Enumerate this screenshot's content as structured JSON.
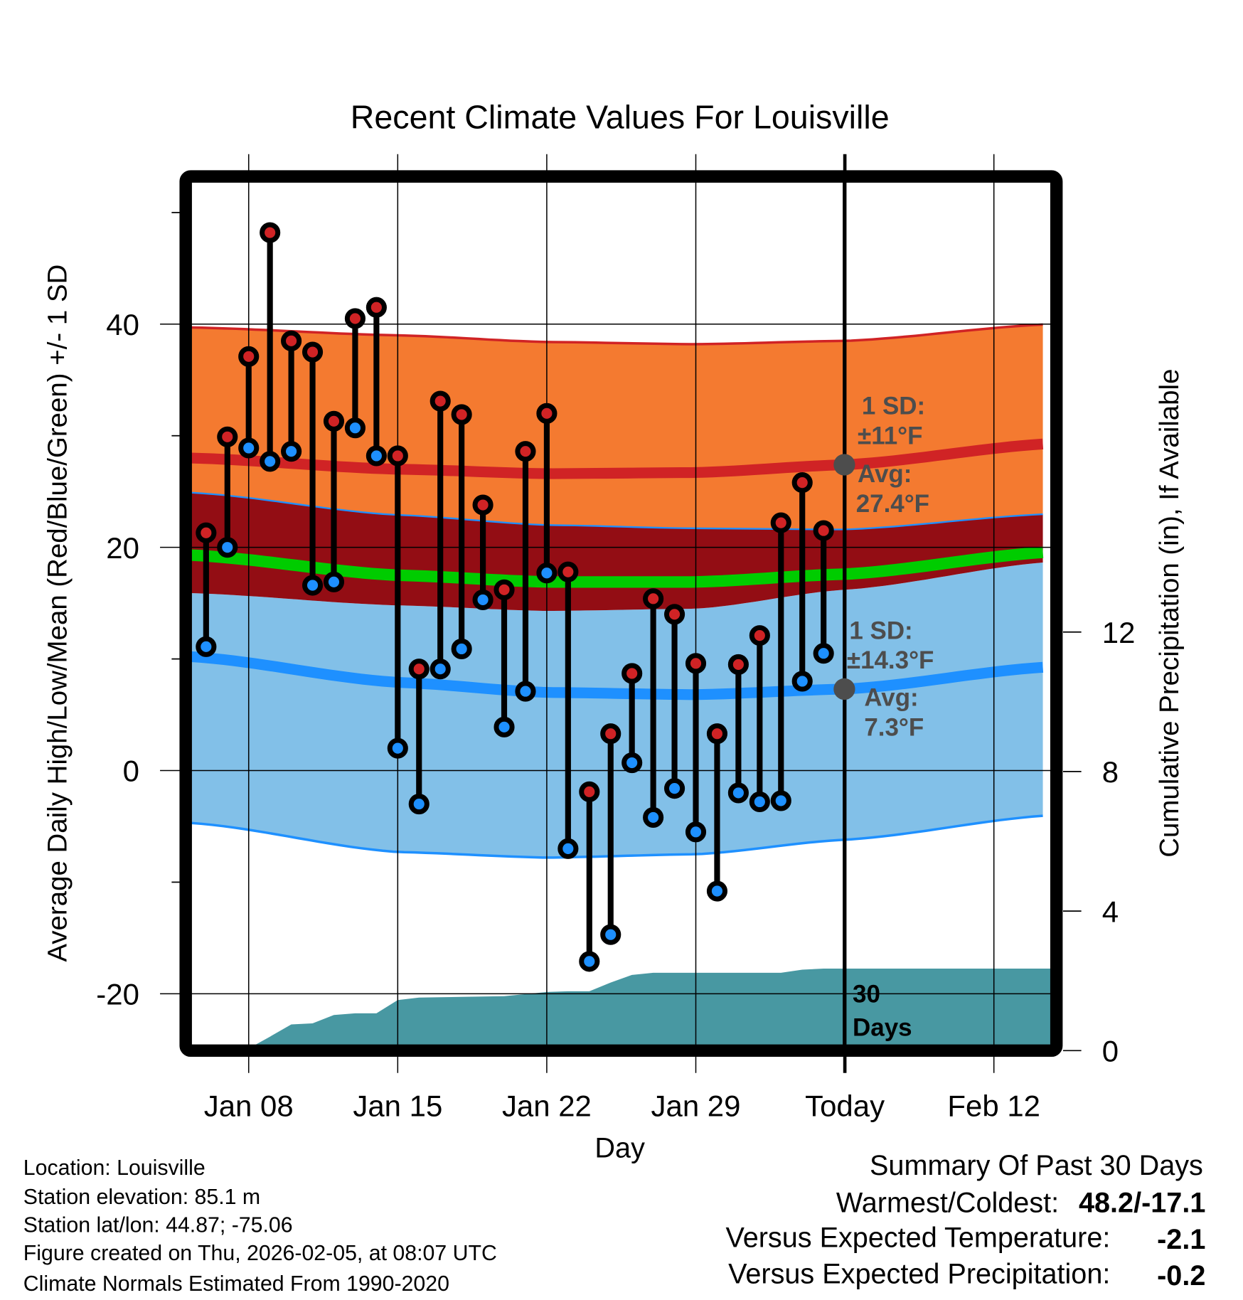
{
  "chart_data": {
    "type": "line",
    "title": "Recent Climate Values For Louisville",
    "xlabel": "Day",
    "ylabel": "Average Daily High/Low/Mean (Red/Blue/Green) +/- 1 SD",
    "y2label": "Cumulative Precipitation (in), If Available",
    "ylim": [
      -25,
      53
    ],
    "y2lim": [
      0,
      18.5
    ],
    "yticks": [
      "40",
      "20",
      "0",
      "-20"
    ],
    "yticks_values": [
      40,
      20,
      0,
      -20
    ],
    "y2ticks": [
      "12",
      "8",
      "4",
      "0"
    ],
    "y2ticks_values": [
      12,
      8,
      4,
      0
    ],
    "xticks": [
      "Jan 08",
      "Jan 15",
      "Jan 22",
      "Jan 29",
      "Today",
      "Feb 12"
    ],
    "xticks_days_from_jan08": [
      0,
      7,
      14,
      21,
      28,
      35
    ],
    "grid": true,
    "days": [
      "Jan 06",
      "Jan 07",
      "Jan 08",
      "Jan 09",
      "Jan 10",
      "Jan 11",
      "Jan 12",
      "Jan 13",
      "Jan 14",
      "Jan 15",
      "Jan 16",
      "Jan 17",
      "Jan 18",
      "Jan 19",
      "Jan 20",
      "Jan 21",
      "Jan 22",
      "Jan 23",
      "Jan 24",
      "Jan 25",
      "Jan 26",
      "Jan 27",
      "Jan 28",
      "Jan 29",
      "Jan 30",
      "Jan 31",
      "Feb 01",
      "Feb 02",
      "Feb 03",
      "Feb 04"
    ],
    "series": [
      {
        "name": "Daily High",
        "color": "#d02325",
        "values": [
          21.3,
          29.9,
          37.1,
          48.2,
          38.5,
          37.5,
          31.3,
          40.5,
          41.5,
          28.2,
          9.1,
          33.1,
          31.9,
          23.8,
          16.2,
          28.6,
          32.0,
          17.8,
          -1.9,
          3.3,
          8.7,
          15.4,
          14.0,
          9.6,
          3.3,
          9.5,
          12.1,
          22.2,
          25.8,
          21.5
        ]
      },
      {
        "name": "Daily Low",
        "color": "#1e90ff",
        "values": [
          11.1,
          20.0,
          28.9,
          27.7,
          28.6,
          16.6,
          16.9,
          30.7,
          28.2,
          2.0,
          -3.0,
          9.1,
          10.9,
          15.3,
          3.9,
          7.1,
          17.7,
          -7.0,
          -17.1,
          -14.7,
          0.7,
          -4.2,
          -1.6,
          -5.5,
          -10.8,
          -2.0,
          -2.8,
          -2.7,
          8.0,
          10.5
        ]
      },
      {
        "name": "Cumulative Precipitation (in)",
        "color": "#4898a2",
        "values": [
          0.0,
          0.06,
          0.06,
          0.4,
          0.75,
          0.78,
          1.02,
          1.07,
          1.07,
          1.45,
          1.52,
          1.53,
          1.54,
          1.55,
          1.56,
          1.62,
          1.68,
          1.7,
          1.7,
          1.95,
          2.17,
          2.23,
          2.23,
          2.23,
          2.23,
          2.23,
          2.23,
          2.23,
          2.32,
          2.35
        ]
      }
    ],
    "normals": {
      "days_from_jan08": [
        -2.7,
        7,
        14,
        21,
        28,
        37.7
      ],
      "high_plus_sd": [
        39.7,
        39.0,
        38.4,
        38.2,
        38.5,
        40.0
      ],
      "high_mean": [
        28.0,
        27.0,
        26.6,
        26.7,
        27.4,
        29.3
      ],
      "high_minus_sd": [
        24.9,
        22.9,
        22.0,
        21.7,
        21.6,
        23.0
      ],
      "mean_mean": [
        19.3,
        17.5,
        16.9,
        16.9,
        17.6,
        19.6
      ],
      "low_plus_sd": [
        15.9,
        14.8,
        14.3,
        14.5,
        16.2,
        18.7
      ],
      "low_mean": [
        10.2,
        7.9,
        7.0,
        6.8,
        7.3,
        9.3
      ],
      "low_minus_sd": [
        -4.7,
        -7.3,
        -7.8,
        -7.5,
        -6.2,
        -4.0
      ]
    },
    "colors": {
      "high_band": "#f47a30",
      "high_line": "#d02325",
      "overlap": "#930d14",
      "mean_line": "#00cc00",
      "low_band": "#82c0e8",
      "low_line": "#1e90ff",
      "precip": "#4898a2",
      "annotation": "#4d4d4d"
    },
    "annotations": {
      "high_sd_1": "1 SD:",
      "high_sd_2": "±11°F",
      "high_avg_1": "Avg:",
      "high_avg_2": "27.4°F",
      "low_sd_1": "1 SD:",
      "low_sd_2": "±14.3°F",
      "low_avg_1": "Avg:",
      "low_avg_2": "7.3°F",
      "precip_1": "30",
      "precip_2": "Days"
    }
  },
  "footer": {
    "location": "Location: Louisville",
    "elevation": "Station elevation: 85.1 m",
    "latlon": "Station lat/lon: 44.87; -75.06",
    "created": "Figure created on Thu, 2026-02-05, at 08:07 UTC",
    "normals": "Climate Normals Estimated From 1990-2020"
  },
  "summary": {
    "title": "Summary Of Past 30 Days",
    "warm_cold_label": "Warmest/Coldest:",
    "warm_cold_value": "48.2/-17.1",
    "temp_label": "Versus Expected Temperature:",
    "temp_value": "-2.1",
    "temp_color": "#1e90ff",
    "precip_label": "Versus Expected Precipitation:",
    "precip_value": "-0.2",
    "precip_color": "#a0522d"
  }
}
